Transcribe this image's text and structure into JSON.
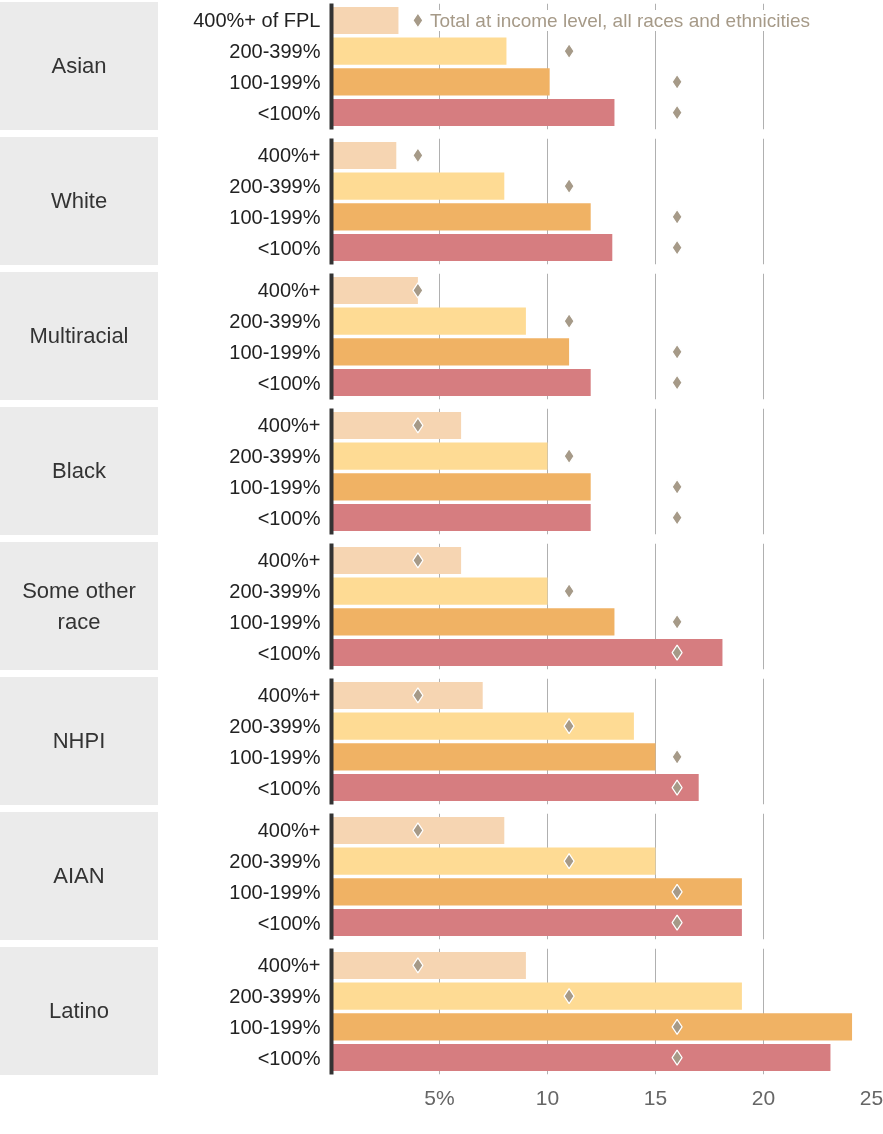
{
  "chart_data": [
    {
      "type": "bar",
      "orientation": "horizontal",
      "title": "Asian",
      "categories": [
        "400%+ of FPL",
        "200-399%",
        "100-199%",
        "<100%"
      ],
      "series": [
        {
          "type": "bar",
          "colors": [
            "#f6d5b2",
            "#fedb94",
            "#f0b264",
            "#d67d80"
          ],
          "values": [
            3.1,
            8.1,
            10.1,
            13.1
          ]
        },
        {
          "type": "scatter",
          "name": "Total at income level, all races and ethnicities",
          "color": "#a69a88",
          "marker": "diamond",
          "values": [
            4,
            11,
            16,
            16
          ]
        }
      ],
      "xlim": [
        0,
        25
      ],
      "xticks": [
        5,
        10,
        15,
        20,
        25
      ],
      "grid": "x",
      "tick_labels": "y"
    },
    {
      "type": "bar",
      "orientation": "horizontal",
      "title": "White",
      "categories": [
        "400%+",
        "200-399%",
        "100-199%",
        "<100%"
      ],
      "series": [
        {
          "type": "bar",
          "colors": [
            "#f6d5b2",
            "#fedb94",
            "#f0b264",
            "#d67d80"
          ],
          "values": [
            3,
            8,
            12,
            13
          ]
        },
        {
          "type": "scatter",
          "color": "#a69a88",
          "marker": "diamond",
          "values": [
            4,
            11,
            16,
            16
          ]
        }
      ],
      "xlim": [
        0,
        25
      ],
      "xticks": [
        5,
        10,
        15,
        20,
        25
      ],
      "grid": "x",
      "tick_labels": "y"
    },
    {
      "type": "bar",
      "orientation": "horizontal",
      "title": "Multiracial",
      "categories": [
        "400%+",
        "200-399%",
        "100-199%",
        "<100%"
      ],
      "series": [
        {
          "type": "bar",
          "colors": [
            "#f6d5b2",
            "#fedb94",
            "#f0b264",
            "#d67d80"
          ],
          "values": [
            4,
            9,
            11,
            12
          ]
        },
        {
          "type": "scatter",
          "color": "#a69a88",
          "marker": "diamond",
          "values": [
            4,
            11,
            16,
            16
          ]
        }
      ],
      "xlim": [
        0,
        25
      ],
      "xticks": [
        5,
        10,
        15,
        20,
        25
      ],
      "grid": "x",
      "tick_labels": "y"
    },
    {
      "type": "bar",
      "orientation": "horizontal",
      "title": "Black",
      "categories": [
        "400%+",
        "200-399%",
        "100-199%",
        "<100%"
      ],
      "series": [
        {
          "type": "bar",
          "colors": [
            "#f6d5b2",
            "#fedb94",
            "#f0b264",
            "#d67d80"
          ],
          "values": [
            6,
            10,
            12,
            12
          ]
        },
        {
          "type": "scatter",
          "color": "#a69a88",
          "marker": "diamond",
          "values": [
            4,
            11,
            16,
            16
          ]
        }
      ],
      "xlim": [
        0,
        25
      ],
      "xticks": [
        5,
        10,
        15,
        20,
        25
      ],
      "grid": "x",
      "tick_labels": "y"
    },
    {
      "type": "bar",
      "orientation": "horizontal",
      "title": "Some other race",
      "categories": [
        "400%+",
        "200-399%",
        "100-199%",
        "<100%"
      ],
      "series": [
        {
          "type": "bar",
          "colors": [
            "#f6d5b2",
            "#fedb94",
            "#f0b264",
            "#d67d80"
          ],
          "values": [
            6,
            10,
            13.1,
            18.1
          ]
        },
        {
          "type": "scatter",
          "color": "#a69a88",
          "marker": "diamond",
          "values": [
            4,
            11,
            16,
            16
          ]
        }
      ],
      "xlim": [
        0,
        25
      ],
      "xticks": [
        5,
        10,
        15,
        20,
        25
      ],
      "grid": "x",
      "tick_labels": "y"
    },
    {
      "type": "bar",
      "orientation": "horizontal",
      "title": "NHPI",
      "categories": [
        "400%+",
        "200-399%",
        "100-199%",
        "<100%"
      ],
      "series": [
        {
          "type": "bar",
          "colors": [
            "#f6d5b2",
            "#fedb94",
            "#f0b264",
            "#d67d80"
          ],
          "values": [
            7,
            14,
            15,
            17
          ]
        },
        {
          "type": "scatter",
          "color": "#a69a88",
          "marker": "diamond",
          "values": [
            4,
            11,
            16,
            16
          ]
        }
      ],
      "xlim": [
        0,
        25
      ],
      "xticks": [
        5,
        10,
        15,
        20,
        25
      ],
      "grid": "x",
      "tick_labels": "y"
    },
    {
      "type": "bar",
      "orientation": "horizontal",
      "title": "AIAN",
      "categories": [
        "400%+",
        "200-399%",
        "100-199%",
        "<100%"
      ],
      "series": [
        {
          "type": "bar",
          "colors": [
            "#f6d5b2",
            "#fedb94",
            "#f0b264",
            "#d67d80"
          ],
          "values": [
            8,
            15,
            19,
            19
          ]
        },
        {
          "type": "scatter",
          "color": "#a69a88",
          "marker": "diamond",
          "values": [
            4,
            11,
            16,
            16
          ]
        }
      ],
      "xlim": [
        0,
        25
      ],
      "xticks": [
        5,
        10,
        15,
        20,
        25
      ],
      "grid": "x",
      "tick_labels": "y"
    },
    {
      "type": "bar",
      "orientation": "horizontal",
      "title": "Latino",
      "categories": [
        "400%+",
        "200-399%",
        "100-199%",
        "<100%"
      ],
      "series": [
        {
          "type": "bar",
          "colors": [
            "#f6d5b2",
            "#fedb94",
            "#f0b264",
            "#d67d80"
          ],
          "values": [
            9,
            19,
            24.1,
            23.1
          ]
        },
        {
          "type": "scatter",
          "color": "#a69a88",
          "marker": "diamond",
          "values": [
            4,
            11,
            16,
            16
          ]
        }
      ],
      "xlim": [
        0,
        25
      ],
      "xticks": [
        {
          "value": 5,
          "label": "5%"
        },
        10,
        15,
        20,
        25
      ],
      "grid": "x"
    }
  ]
}
